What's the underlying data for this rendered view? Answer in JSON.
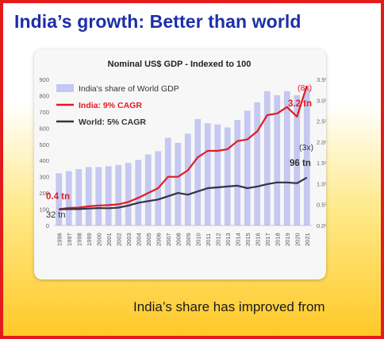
{
  "slide": {
    "title": "India’s growth: Better than world",
    "caption": "India’s share has improved from"
  },
  "colors": {
    "border": "#e41b1b",
    "title": "#1c2fa8",
    "bar": "#c5c8f0",
    "india_line": "#e31b23",
    "world_line": "#333340",
    "annotation_red": "#e31b23",
    "annotation_dark": "#333333"
  },
  "chart_data": {
    "type": "bar",
    "title": "Nominal US$ GDP - Indexed to 100",
    "categories": [
      "1996",
      "1997",
      "1998",
      "1999",
      "2000",
      "2001",
      "2002",
      "2003",
      "2004",
      "2005",
      "2006",
      "2007",
      "2008",
      "2009",
      "2010",
      "2011",
      "2012",
      "2013",
      "2014",
      "2015",
      "2016",
      "2017",
      "2018",
      "2019",
      "2020",
      "2021"
    ],
    "left_axis": {
      "min": 0,
      "max": 900,
      "ticks": [
        "0",
        "100",
        "200",
        "300",
        "400",
        "500",
        "600",
        "700",
        "800",
        "900"
      ]
    },
    "right_axis": {
      "min": 0,
      "max": 3.5,
      "ticks": [
        "0.0%",
        "0.5%",
        "1.0%",
        "1.5%",
        "2.0%",
        "2.5%",
        "3.0%",
        "3.5%"
      ]
    },
    "legend": {
      "position": "top-left",
      "items": [
        "India's share of World GDP",
        "India:  9% CAGR",
        "World:  5% CAGR"
      ]
    },
    "series": [
      {
        "name": "India's share of World GDP",
        "type": "bar",
        "axis": "right",
        "values": [
          1.25,
          1.3,
          1.35,
          1.4,
          1.4,
          1.42,
          1.45,
          1.5,
          1.57,
          1.7,
          1.78,
          2.1,
          1.98,
          2.2,
          2.55,
          2.45,
          2.42,
          2.35,
          2.53,
          2.75,
          2.95,
          3.22,
          3.12,
          3.22,
          3.12,
          3.3
        ]
      },
      {
        "name": "India:  9% CAGR",
        "type": "line",
        "axis": "left",
        "values": [
          100,
          108,
          110,
          118,
          123,
          125,
          130,
          145,
          170,
          200,
          230,
          300,
          300,
          340,
          420,
          460,
          460,
          470,
          520,
          530,
          580,
          680,
          690,
          730,
          670,
          860
        ]
      },
      {
        "name": "World:  5% CAGR",
        "type": "line",
        "axis": "left",
        "values": [
          100,
          101,
          101,
          104,
          107,
          106,
          110,
          123,
          140,
          150,
          160,
          180,
          200,
          190,
          210,
          230,
          235,
          240,
          245,
          230,
          240,
          255,
          265,
          265,
          260,
          295
        ]
      }
    ],
    "annotations": [
      {
        "text": "(8x)",
        "color": "red"
      },
      {
        "text": "3.2 tn",
        "color": "red"
      },
      {
        "text": "(3x)",
        "color": "dark"
      },
      {
        "text": "96 tn",
        "color": "dark"
      },
      {
        "text": "0.4 tn",
        "color": "red"
      },
      {
        "text": "32 tn",
        "color": "dark"
      }
    ]
  }
}
